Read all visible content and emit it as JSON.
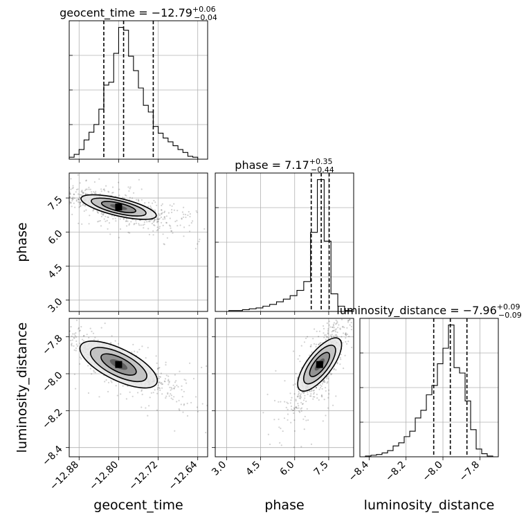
{
  "chart_data": {
    "type": "corner",
    "parameters": [
      "geocent_time",
      "phase",
      "luminosity_distance"
    ],
    "axes": {
      "geocent_time": {
        "range": [
          -12.9,
          -12.62
        ],
        "ticks": [
          -12.88,
          -12.8,
          -12.72,
          -12.64
        ],
        "tick_labels": [
          "−12.88",
          "−12.80",
          "−12.72",
          "−12.64"
        ]
      },
      "phase": {
        "range": [
          2.5,
          8.6
        ],
        "ticks": [
          3.0,
          4.5,
          6.0,
          7.5
        ],
        "tick_labels": [
          "3.0",
          "4.5",
          "6.0",
          "7.5"
        ]
      },
      "luminosity_distance": {
        "range": [
          -8.45,
          -7.7
        ],
        "ticks": [
          -8.4,
          -8.2,
          -8.0,
          -7.8
        ],
        "tick_labels": [
          "−8.4",
          "−8.2",
          "−8.0",
          "−7.8"
        ]
      }
    },
    "marginals": [
      {
        "param": "geocent_time",
        "title": {
          "name": "geocent_time",
          "median": "−12.79",
          "upper": "+0.06",
          "lower": "−0.04"
        },
        "quantiles": [
          -12.83,
          -12.79,
          -12.73
        ],
        "bin_edges": [
          -12.9,
          -12.89,
          -12.88,
          -12.87,
          -12.86,
          -12.85,
          -12.84,
          -12.83,
          -12.82,
          -12.81,
          -12.8,
          -12.79,
          -12.78,
          -12.77,
          -12.76,
          -12.75,
          -12.74,
          -12.73,
          -12.72,
          -12.71,
          -12.7,
          -12.69,
          -12.68,
          -12.67,
          -12.66,
          -12.65,
          -12.64,
          -12.63,
          -12.62
        ],
        "counts": [
          2,
          5,
          10,
          20,
          28,
          36,
          52,
          77,
          80,
          110,
          137,
          134,
          107,
          92,
          74,
          56,
          49,
          34,
          27,
          22,
          18,
          14,
          10,
          7,
          3,
          2,
          0,
          0
        ]
      },
      {
        "param": "phase",
        "title": {
          "name": "phase",
          "median": "7.17",
          "upper": "+0.35",
          "lower": "−0.44"
        },
        "quantiles": [
          6.73,
          7.17,
          7.52
        ],
        "bin_edges": [
          2.5,
          2.8,
          3.1,
          3.4,
          3.7,
          4.0,
          4.3,
          4.6,
          4.9,
          5.2,
          5.5,
          5.8,
          6.1,
          6.4,
          6.7,
          7.0,
          7.3,
          7.6,
          7.9,
          8.2,
          8.5
        ],
        "counts": [
          0,
          0,
          1,
          1,
          2,
          3,
          4,
          6,
          8,
          11,
          14,
          18,
          24,
          34,
          90,
          150,
          80,
          20,
          6,
          1
        ]
      },
      {
        "param": "luminosity_distance",
        "title": {
          "name": "luminosity_distance",
          "median": "−7.96",
          "upper": "+0.09",
          "lower": "−0.09"
        },
        "quantiles": [
          -8.05,
          -7.96,
          -7.87
        ],
        "bin_edges": [
          -8.45,
          -8.42,
          -8.39,
          -8.36,
          -8.33,
          -8.3,
          -8.27,
          -8.24,
          -8.21,
          -8.18,
          -8.15,
          -8.12,
          -8.09,
          -8.06,
          -8.03,
          -8.0,
          -7.97,
          -7.94,
          -7.91,
          -7.88,
          -7.85,
          -7.82,
          -7.79,
          -7.76,
          -7.73,
          -7.7
        ],
        "counts": [
          0,
          1,
          2,
          3,
          5,
          8,
          14,
          18,
          26,
          33,
          50,
          60,
          80,
          92,
          120,
          140,
          170,
          115,
          108,
          72,
          35,
          10,
          4,
          1,
          0
        ]
      }
    ],
    "joints": [
      {
        "x": "geocent_time",
        "y": "phase",
        "peak": [
          -12.8,
          7.1
        ],
        "spread": [
          0.045,
          0.32
        ],
        "corr": -0.72
      },
      {
        "x": "geocent_time",
        "y": "luminosity_distance",
        "peak": [
          -12.8,
          -7.95
        ],
        "spread": [
          0.045,
          0.07
        ],
        "corr": -0.85
      },
      {
        "x": "phase",
        "y": "luminosity_distance",
        "peak": [
          7.1,
          -7.95
        ],
        "spread": [
          0.45,
          0.09
        ],
        "corr": 0.8
      }
    ],
    "grid": true
  }
}
